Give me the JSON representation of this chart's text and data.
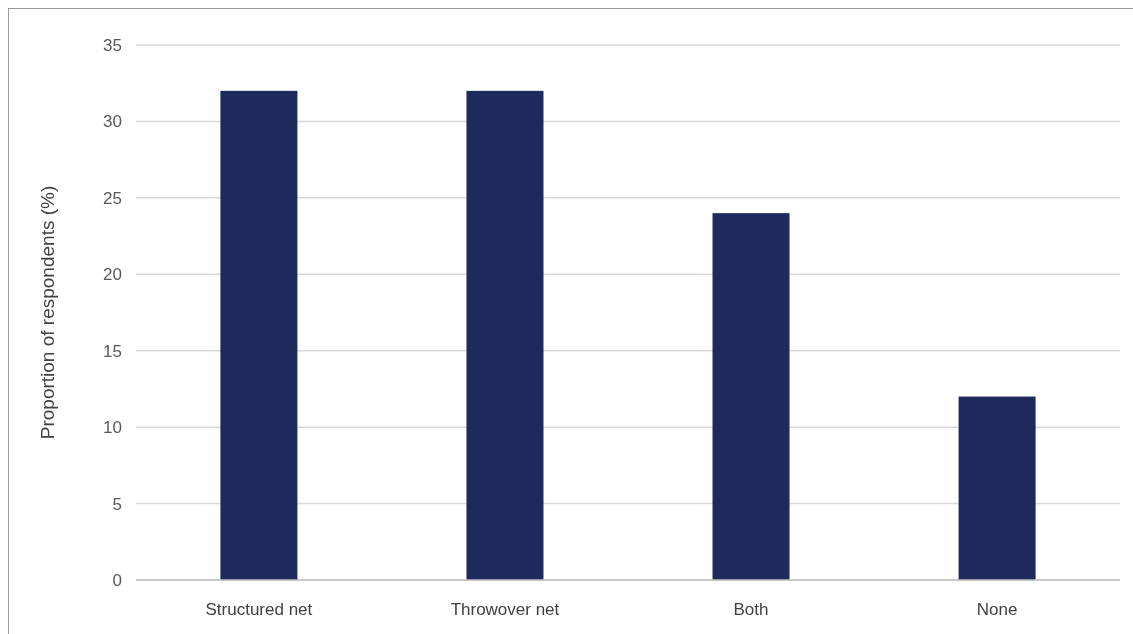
{
  "chart_data": {
    "type": "bar",
    "ylabel": "Proportion of respondents (%)",
    "categories": [
      "Structured net",
      "Throwover net",
      "Both",
      "None"
    ],
    "values": [
      32,
      32,
      24,
      12
    ],
    "color": "#1f2a5c",
    "ylim": [
      0,
      35
    ],
    "yticks": [
      0,
      5,
      10,
      15,
      20,
      25,
      30,
      35
    ],
    "grid": "y"
  }
}
